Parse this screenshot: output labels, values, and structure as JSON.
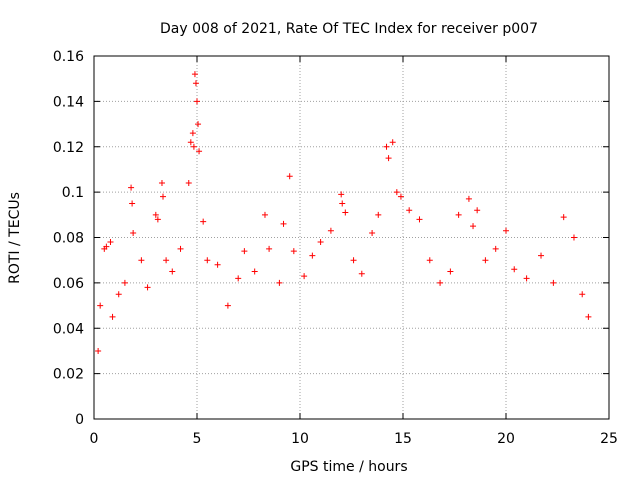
{
  "chart_data": {
    "type": "scatter",
    "title": "Day 008 of 2021, Rate Of TEC Index for receiver p007",
    "xlabel": "GPS time / hours",
    "ylabel": "ROTI / TECUs",
    "xlim": [
      0,
      25
    ],
    "ylim": [
      0,
      0.16
    ],
    "xticks": [
      "0",
      "5",
      "10",
      "15",
      "20",
      "25"
    ],
    "yticks": [
      "0",
      "0.02",
      "0.04",
      "0.06",
      "0.08",
      "0.1",
      "0.12",
      "0.14",
      "0.16"
    ],
    "grid": true,
    "marker": "+",
    "color": "#ff0000",
    "series": [
      {
        "points": [
          [
            0.2,
            0.03
          ],
          [
            0.3,
            0.05
          ],
          [
            0.5,
            0.075
          ],
          [
            0.6,
            0.076
          ],
          [
            0.8,
            0.078
          ],
          [
            0.9,
            0.045
          ],
          [
            1.2,
            0.055
          ],
          [
            1.5,
            0.06
          ],
          [
            1.8,
            0.102
          ],
          [
            1.85,
            0.095
          ],
          [
            1.9,
            0.082
          ],
          [
            2.3,
            0.07
          ],
          [
            2.6,
            0.058
          ],
          [
            3.0,
            0.09
          ],
          [
            3.1,
            0.088
          ],
          [
            3.3,
            0.104
          ],
          [
            3.35,
            0.098
          ],
          [
            3.5,
            0.07
          ],
          [
            3.8,
            0.065
          ],
          [
            4.2,
            0.075
          ],
          [
            4.6,
            0.104
          ],
          [
            4.7,
            0.122
          ],
          [
            4.8,
            0.126
          ],
          [
            4.85,
            0.12
          ],
          [
            4.9,
            0.152
          ],
          [
            4.95,
            0.148
          ],
          [
            5.0,
            0.14
          ],
          [
            5.05,
            0.13
          ],
          [
            5.1,
            0.118
          ],
          [
            5.3,
            0.087
          ],
          [
            5.5,
            0.07
          ],
          [
            6.0,
            0.068
          ],
          [
            6.5,
            0.05
          ],
          [
            7.0,
            0.062
          ],
          [
            7.3,
            0.074
          ],
          [
            7.8,
            0.065
          ],
          [
            8.3,
            0.09
          ],
          [
            8.5,
            0.075
          ],
          [
            9.0,
            0.06
          ],
          [
            9.2,
            0.086
          ],
          [
            9.5,
            0.107
          ],
          [
            9.7,
            0.074
          ],
          [
            10.2,
            0.063
          ],
          [
            10.6,
            0.072
          ],
          [
            11.0,
            0.078
          ],
          [
            11.5,
            0.083
          ],
          [
            12.0,
            0.099
          ],
          [
            12.05,
            0.095
          ],
          [
            12.2,
            0.091
          ],
          [
            12.6,
            0.07
          ],
          [
            13.0,
            0.064
          ],
          [
            13.5,
            0.082
          ],
          [
            13.8,
            0.09
          ],
          [
            14.2,
            0.12
          ],
          [
            14.3,
            0.115
          ],
          [
            14.5,
            0.122
          ],
          [
            14.7,
            0.1
          ],
          [
            14.9,
            0.098
          ],
          [
            15.3,
            0.092
          ],
          [
            15.8,
            0.088
          ],
          [
            16.3,
            0.07
          ],
          [
            16.8,
            0.06
          ],
          [
            17.3,
            0.065
          ],
          [
            17.7,
            0.09
          ],
          [
            18.2,
            0.097
          ],
          [
            18.4,
            0.085
          ],
          [
            18.6,
            0.092
          ],
          [
            19.0,
            0.07
          ],
          [
            19.5,
            0.075
          ],
          [
            20.0,
            0.083
          ],
          [
            20.4,
            0.066
          ],
          [
            21.0,
            0.062
          ],
          [
            21.7,
            0.072
          ],
          [
            22.3,
            0.06
          ],
          [
            22.8,
            0.089
          ],
          [
            23.3,
            0.08
          ],
          [
            23.7,
            0.055
          ],
          [
            24.0,
            0.045
          ]
        ]
      }
    ]
  }
}
